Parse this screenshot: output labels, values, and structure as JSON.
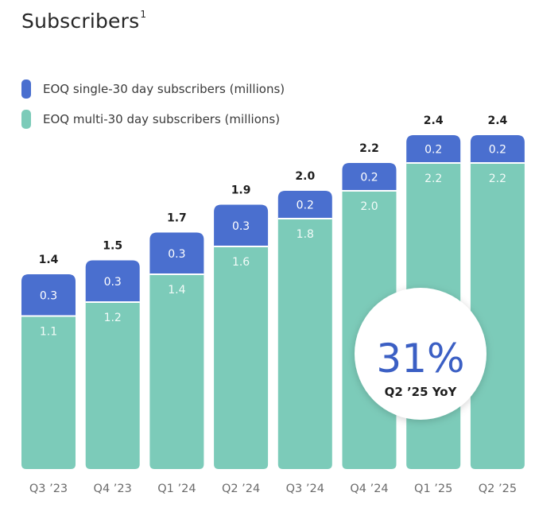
{
  "title": "Subscribers",
  "title_footnote": "1",
  "legend": [
    {
      "label": "EOQ single-30 day subscribers (millions)",
      "color": "#4a6fcf"
    },
    {
      "label": "EOQ multi-30 day subscribers  (millions)",
      "color": "#7ccbb9"
    }
  ],
  "chart_data": {
    "type": "bar",
    "stacked": true,
    "title": "Subscribers",
    "categories": [
      "Q3 ’23",
      "Q4 ’23",
      "Q1 ’24",
      "Q2 ’24",
      "Q3 ’24",
      "Q4 ’24",
      "Q1 ’25",
      "Q2 ’25"
    ],
    "series": [
      {
        "name": "EOQ multi-30 day subscribers  (millions)",
        "values": [
          1.1,
          1.2,
          1.4,
          1.6,
          1.8,
          2.0,
          2.2,
          2.2
        ],
        "labels": [
          "1.1",
          "1.2",
          "1.4",
          "1.6",
          "1.8",
          "2.0",
          "2.2",
          "2.2"
        ],
        "color": "#7ccbb9"
      },
      {
        "name": "EOQ single-30 day subscribers (millions)",
        "values": [
          0.3,
          0.3,
          0.3,
          0.3,
          0.2,
          0.2,
          0.2,
          0.2
        ],
        "labels": [
          "0.3",
          "0.3",
          "0.3",
          "0.3",
          "0.2",
          "0.2",
          "0.2",
          "0.2"
        ],
        "color": "#4a6fcf"
      }
    ],
    "totals": [
      1.4,
      1.5,
      1.7,
      1.9,
      2.0,
      2.2,
      2.4,
      2.4
    ],
    "total_labels": [
      "1.4",
      "1.5",
      "1.7",
      "1.9",
      "2.0",
      "2.2",
      "2.4",
      "2.4"
    ],
    "ylim": [
      0,
      2.4
    ],
    "xlabel": "",
    "ylabel": ""
  },
  "callout": {
    "value": "31%",
    "caption": "Q2 ’25 YoY"
  }
}
